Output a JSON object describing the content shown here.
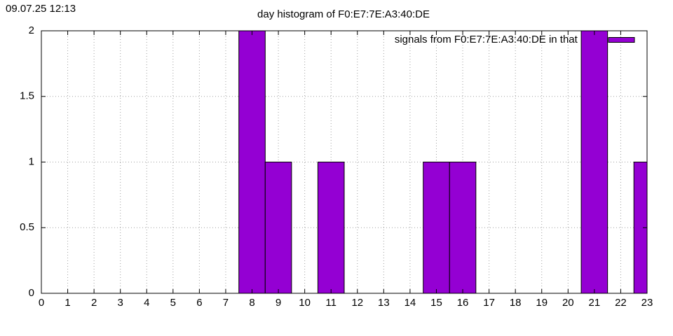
{
  "chart_data": {
    "type": "bar",
    "timestamp": "09.07.25 12:13",
    "title": "day histogram of F0:E7:7E:A3:40:DE",
    "series": [
      {
        "name": "signals from F0:E7:7E:A3:40:DE in that hour",
        "color": "#9400d3",
        "x": [
          8,
          9,
          11,
          15,
          16,
          21,
          23
        ],
        "values": [
          2,
          1,
          1,
          1,
          1,
          2,
          1
        ]
      }
    ],
    "bar_width": 1,
    "xlim": [
      0,
      23
    ],
    "xticks": [
      0,
      1,
      2,
      3,
      4,
      5,
      6,
      7,
      8,
      9,
      10,
      11,
      12,
      13,
      14,
      15,
      16,
      17,
      18,
      19,
      20,
      21,
      22,
      23
    ],
    "ylim": [
      0,
      2
    ],
    "yticks": [
      0,
      0.5,
      1,
      1.5,
      2
    ],
    "grid": true,
    "legend": "top-right"
  }
}
